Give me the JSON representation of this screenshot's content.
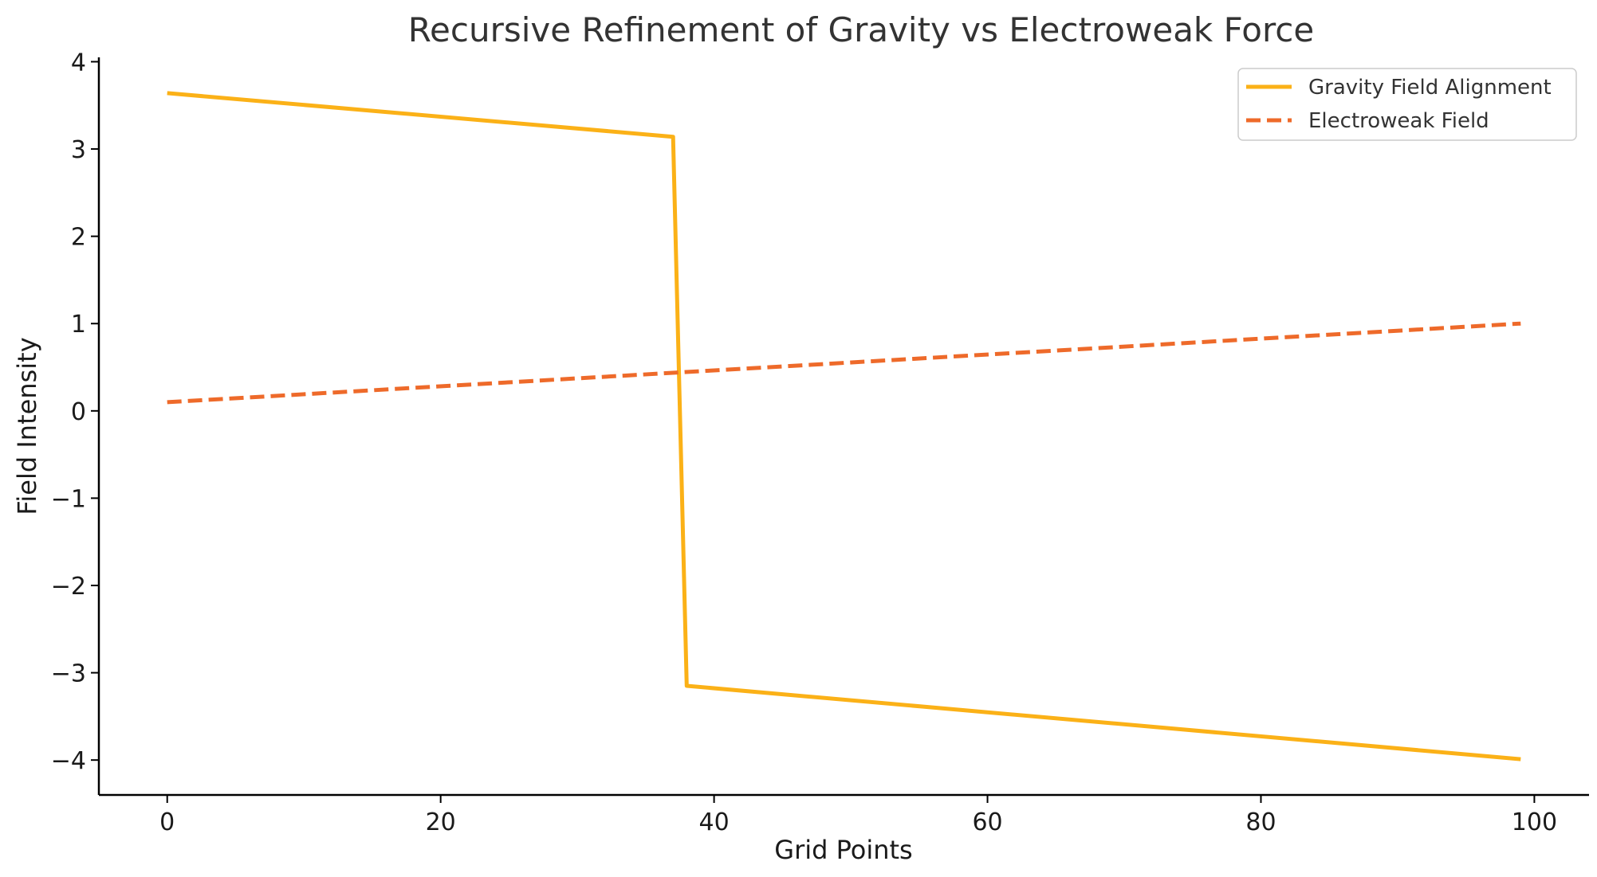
{
  "chart_data": {
    "type": "line",
    "title": "Recursive Refinement of Gravity vs Electroweak Force",
    "xlabel": "Grid Points",
    "ylabel": "Field Intensity",
    "xlim": [
      -5,
      104
    ],
    "ylim": [
      -4.4,
      4.05
    ],
    "xticks": [
      0,
      20,
      40,
      60,
      80,
      100
    ],
    "yticks": [
      4,
      3,
      2,
      1,
      0,
      -1,
      -2,
      -3,
      -4
    ],
    "ytick_labels": [
      "4",
      "3",
      "2",
      "1",
      "0",
      "−1",
      "−2",
      "−3",
      "−4"
    ],
    "legend_position": "top-right",
    "grid": false,
    "series": [
      {
        "name": "Gravity Field Alignment",
        "color": "#FBB117",
        "style": "solid",
        "x": [
          0,
          37,
          38,
          99
        ],
        "y": [
          3.64,
          3.14,
          -3.15,
          -3.99
        ]
      },
      {
        "name": "Electroweak Field",
        "color": "#EE6A2A",
        "style": "dashed",
        "x": [
          0,
          99
        ],
        "y": [
          0.1,
          1.0
        ]
      }
    ]
  }
}
